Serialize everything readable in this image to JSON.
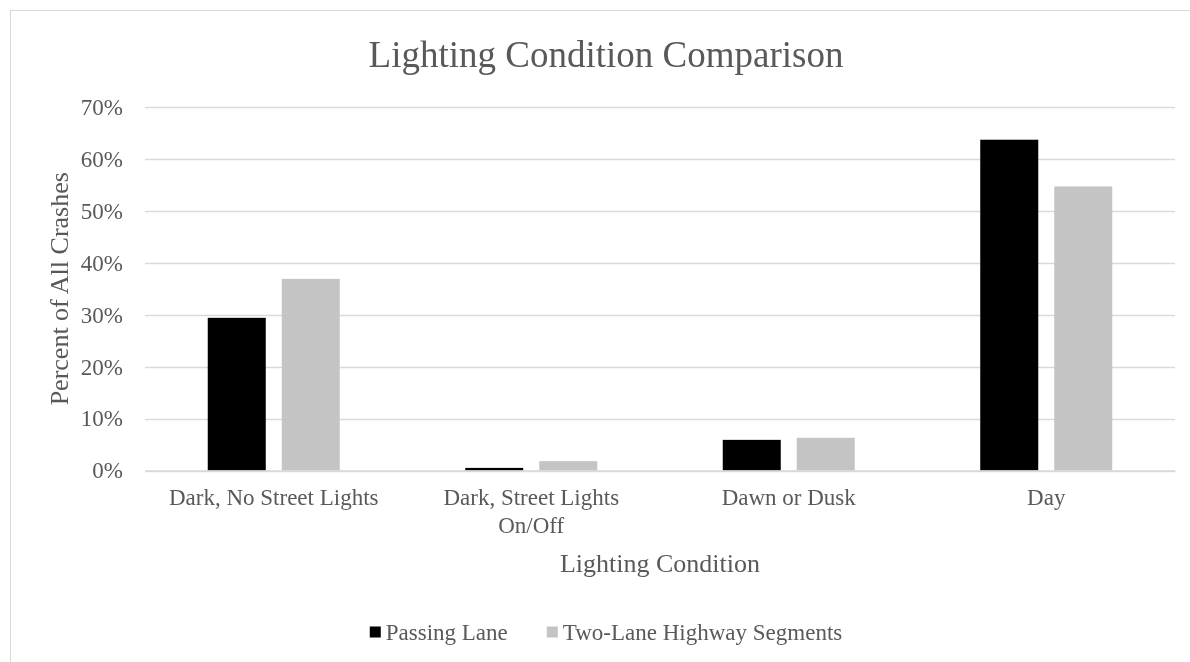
{
  "chart_data": {
    "type": "bar",
    "title": "Lighting Condition Comparison",
    "xlabel": "Lighting Condition",
    "ylabel": "Percent of All Crashes",
    "categories": [
      "Dark, No Street Lights",
      "Dark, Street Lights On/Off",
      "Dawn or Dusk",
      "Day"
    ],
    "series": [
      {
        "name": "Passing Lane",
        "color": "#000000",
        "values": [
          29.4,
          0.5,
          5.9,
          63.7
        ]
      },
      {
        "name": "Two-Lane Highway Segments",
        "color": "#c4c4c4",
        "values": [
          36.9,
          1.8,
          6.3,
          54.7
        ]
      }
    ],
    "ylim": [
      0,
      70
    ],
    "yticks": [
      {
        "value": 0,
        "label": "0%"
      },
      {
        "value": 10,
        "label": "10%"
      },
      {
        "value": 20,
        "label": "20%"
      },
      {
        "value": 30,
        "label": "30%"
      },
      {
        "value": 40,
        "label": "40%"
      },
      {
        "value": 50,
        "label": "50%"
      },
      {
        "value": 60,
        "label": "60%"
      },
      {
        "value": 70,
        "label": "70%"
      }
    ],
    "grid": "y",
    "legend": "bottom"
  }
}
